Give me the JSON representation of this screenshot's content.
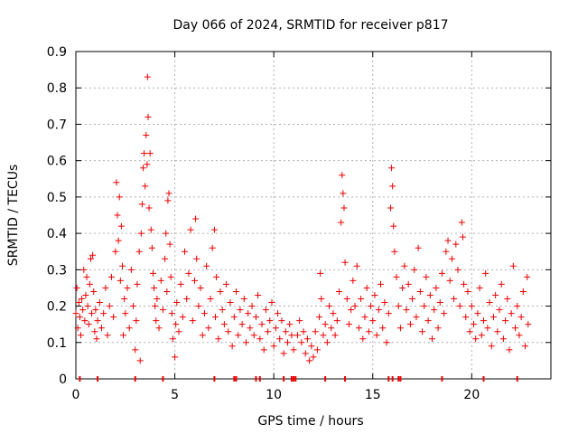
{
  "chart_data": {
    "type": "scatter",
    "title": "Day 066 of 2024, SRMTID for receiver p817",
    "xlabel": "GPS time / hours",
    "ylabel": "SRMTID / TECUs",
    "xlim": [
      0,
      24
    ],
    "ylim": [
      0,
      0.9
    ],
    "x_ticks": [
      0,
      5,
      10,
      15,
      20
    ],
    "x_tick_labels": [
      "0",
      "5",
      "10",
      "15",
      "20"
    ],
    "y_ticks": [
      0,
      0.1,
      0.2,
      0.3,
      0.4,
      0.5,
      0.6,
      0.7,
      0.8,
      0.9
    ],
    "y_tick_labels": [
      "0",
      "0.1",
      "0.2",
      "0.3",
      "0.4",
      "0.5",
      "0.6",
      "0.7",
      "0.8",
      "0.9"
    ],
    "grid": true,
    "marker": "+",
    "color": "#ee0000",
    "series": [
      {
        "name": "SRMTID",
        "points": [
          [
            0.0,
            0.18
          ],
          [
            0.05,
            0.25
          ],
          [
            0.1,
            0.14
          ],
          [
            0.15,
            0.21
          ],
          [
            0.2,
            0.17
          ],
          [
            0.25,
            0.12
          ],
          [
            0.3,
            0.22
          ],
          [
            0.35,
            0.19
          ],
          [
            0.4,
            0.3
          ],
          [
            0.45,
            0.16
          ],
          [
            0.5,
            0.23
          ],
          [
            0.55,
            0.28
          ],
          [
            0.6,
            0.2
          ],
          [
            0.65,
            0.15
          ],
          [
            0.7,
            0.26
          ],
          [
            0.75,
            0.33
          ],
          [
            0.8,
            0.18
          ],
          [
            0.85,
            0.34
          ],
          [
            0.9,
            0.24
          ],
          [
            0.95,
            0.13
          ],
          [
            1.0,
            0.19
          ],
          [
            1.05,
            0.11
          ],
          [
            1.1,
            0.16
          ],
          [
            1.2,
            0.21
          ],
          [
            1.3,
            0.14
          ],
          [
            1.4,
            0.18
          ],
          [
            1.5,
            0.25
          ],
          [
            1.6,
            0.12
          ],
          [
            1.7,
            0.2
          ],
          [
            1.8,
            0.28
          ],
          [
            1.9,
            0.17
          ],
          [
            2.0,
            0.35
          ],
          [
            2.05,
            0.54
          ],
          [
            2.1,
            0.45
          ],
          [
            2.15,
            0.38
          ],
          [
            2.2,
            0.5
          ],
          [
            2.25,
            0.27
          ],
          [
            2.3,
            0.42
          ],
          [
            2.35,
            0.31
          ],
          [
            2.4,
            0.12
          ],
          [
            2.45,
            0.22
          ],
          [
            2.5,
            0.18
          ],
          [
            2.6,
            0.25
          ],
          [
            2.7,
            0.14
          ],
          [
            2.8,
            0.3
          ],
          [
            2.9,
            0.2
          ],
          [
            3.0,
            0.08
          ],
          [
            3.05,
            0.16
          ],
          [
            3.1,
            0.26
          ],
          [
            3.2,
            0.35
          ],
          [
            3.25,
            0.05
          ],
          [
            3.3,
            0.4
          ],
          [
            3.35,
            0.48
          ],
          [
            3.4,
            0.58
          ],
          [
            3.45,
            0.62
          ],
          [
            3.5,
            0.53
          ],
          [
            3.55,
            0.67
          ],
          [
            3.6,
            0.59
          ],
          [
            3.62,
            0.83
          ],
          [
            3.65,
            0.72
          ],
          [
            3.7,
            0.47
          ],
          [
            3.75,
            0.62
          ],
          [
            3.8,
            0.41
          ],
          [
            3.85,
            0.36
          ],
          [
            3.9,
            0.29
          ],
          [
            3.95,
            0.25
          ],
          [
            4.0,
            0.2
          ],
          [
            4.05,
            0.16
          ],
          [
            4.1,
            0.22
          ],
          [
            4.2,
            0.14
          ],
          [
            4.3,
            0.27
          ],
          [
            4.4,
            0.19
          ],
          [
            4.5,
            0.33
          ],
          [
            4.55,
            0.4
          ],
          [
            4.6,
            0.24
          ],
          [
            4.65,
            0.49
          ],
          [
            4.7,
            0.51
          ],
          [
            4.75,
            0.37
          ],
          [
            4.8,
            0.28
          ],
          [
            4.85,
            0.18
          ],
          [
            4.9,
            0.11
          ],
          [
            5.0,
            0.06
          ],
          [
            5.05,
            0.15
          ],
          [
            5.1,
            0.21
          ],
          [
            5.2,
            0.13
          ],
          [
            5.3,
            0.26
          ],
          [
            5.4,
            0.17
          ],
          [
            5.5,
            0.35
          ],
          [
            5.6,
            0.22
          ],
          [
            5.7,
            0.29
          ],
          [
            5.8,
            0.41
          ],
          [
            5.9,
            0.16
          ],
          [
            6.0,
            0.27
          ],
          [
            6.05,
            0.44
          ],
          [
            6.1,
            0.33
          ],
          [
            6.2,
            0.2
          ],
          [
            6.3,
            0.25
          ],
          [
            6.4,
            0.12
          ],
          [
            6.5,
            0.18
          ],
          [
            6.6,
            0.31
          ],
          [
            6.7,
            0.14
          ],
          [
            6.8,
            0.22
          ],
          [
            6.9,
            0.36
          ],
          [
            7.0,
            0.41
          ],
          [
            7.05,
            0.17
          ],
          [
            7.1,
            0.28
          ],
          [
            7.2,
            0.11
          ],
          [
            7.3,
            0.24
          ],
          [
            7.4,
            0.19
          ],
          [
            7.5,
            0.15
          ],
          [
            7.6,
            0.26
          ],
          [
            7.7,
            0.13
          ],
          [
            7.8,
            0.21
          ],
          [
            7.9,
            0.09
          ],
          [
            8.0,
            0.17
          ],
          [
            8.1,
            0.24
          ],
          [
            8.2,
            0.12
          ],
          [
            8.3,
            0.19
          ],
          [
            8.4,
            0.15
          ],
          [
            8.5,
            0.22
          ],
          [
            8.6,
            0.1
          ],
          [
            8.7,
            0.18
          ],
          [
            8.8,
            0.14
          ],
          [
            8.9,
            0.2
          ],
          [
            9.0,
            0.12
          ],
          [
            9.1,
            0.17
          ],
          [
            9.2,
            0.23
          ],
          [
            9.3,
            0.11
          ],
          [
            9.4,
            0.15
          ],
          [
            9.5,
            0.08
          ],
          [
            9.6,
            0.19
          ],
          [
            9.7,
            0.13
          ],
          [
            9.8,
            0.16
          ],
          [
            9.9,
            0.21
          ],
          [
            10.0,
            0.09
          ],
          [
            10.1,
            0.14
          ],
          [
            10.2,
            0.18
          ],
          [
            10.3,
            0.11
          ],
          [
            10.4,
            0.16
          ],
          [
            10.5,
            0.07
          ],
          [
            10.6,
            0.13
          ],
          [
            10.7,
            0.1
          ],
          [
            10.8,
            0.15
          ],
          [
            10.9,
            0.12
          ],
          [
            11.0,
            0.08
          ],
          [
            11.2,
            0.12
          ],
          [
            11.3,
            0.16
          ],
          [
            11.4,
            0.1
          ],
          [
            11.5,
            0.13
          ],
          [
            11.6,
            0.07
          ],
          [
            11.7,
            0.11
          ],
          [
            11.8,
            0.05
          ],
          [
            11.9,
            0.09
          ],
          [
            12.0,
            0.06
          ],
          [
            12.1,
            0.13
          ],
          [
            12.2,
            0.08
          ],
          [
            12.3,
            0.17
          ],
          [
            12.35,
            0.29
          ],
          [
            12.4,
            0.22
          ],
          [
            12.5,
            0.12
          ],
          [
            12.6,
            0.15
          ],
          [
            12.7,
            0.1
          ],
          [
            12.8,
            0.2
          ],
          [
            12.9,
            0.14
          ],
          [
            13.0,
            0.18
          ],
          [
            13.1,
            0.12
          ],
          [
            13.2,
            0.16
          ],
          [
            13.3,
            0.24
          ],
          [
            13.4,
            0.43
          ],
          [
            13.45,
            0.56
          ],
          [
            13.5,
            0.51
          ],
          [
            13.55,
            0.47
          ],
          [
            13.6,
            0.32
          ],
          [
            13.7,
            0.22
          ],
          [
            13.8,
            0.15
          ],
          [
            13.9,
            0.19
          ],
          [
            14.0,
            0.27
          ],
          [
            14.1,
            0.2
          ],
          [
            14.2,
            0.31
          ],
          [
            14.3,
            0.14
          ],
          [
            14.4,
            0.22
          ],
          [
            14.5,
            0.11
          ],
          [
            14.6,
            0.17
          ],
          [
            14.7,
            0.25
          ],
          [
            14.8,
            0.13
          ],
          [
            14.9,
            0.2
          ],
          [
            15.0,
            0.16
          ],
          [
            15.1,
            0.23
          ],
          [
            15.2,
            0.12
          ],
          [
            15.3,
            0.19
          ],
          [
            15.4,
            0.26
          ],
          [
            15.5,
            0.14
          ],
          [
            15.6,
            0.21
          ],
          [
            15.7,
            0.1
          ],
          [
            15.8,
            0.18
          ],
          [
            15.9,
            0.47
          ],
          [
            15.95,
            0.58
          ],
          [
            16.0,
            0.53
          ],
          [
            16.05,
            0.42
          ],
          [
            16.1,
            0.35
          ],
          [
            16.2,
            0.28
          ],
          [
            16.3,
            0.2
          ],
          [
            16.4,
            0.14
          ],
          [
            16.5,
            0.25
          ],
          [
            16.6,
            0.31
          ],
          [
            16.7,
            0.19
          ],
          [
            16.8,
            0.26
          ],
          [
            16.9,
            0.15
          ],
          [
            17.0,
            0.22
          ],
          [
            17.1,
            0.3
          ],
          [
            17.2,
            0.17
          ],
          [
            17.3,
            0.36
          ],
          [
            17.4,
            0.24
          ],
          [
            17.5,
            0.13
          ],
          [
            17.6,
            0.2
          ],
          [
            17.7,
            0.28
          ],
          [
            17.8,
            0.16
          ],
          [
            17.9,
            0.23
          ],
          [
            18.0,
            0.11
          ],
          [
            18.1,
            0.19
          ],
          [
            18.2,
            0.25
          ],
          [
            18.3,
            0.14
          ],
          [
            18.4,
            0.21
          ],
          [
            18.5,
            0.29
          ],
          [
            18.6,
            0.18
          ],
          [
            18.7,
            0.35
          ],
          [
            18.8,
            0.38
          ],
          [
            18.9,
            0.27
          ],
          [
            19.0,
            0.33
          ],
          [
            19.1,
            0.22
          ],
          [
            19.2,
            0.37
          ],
          [
            19.3,
            0.3
          ],
          [
            19.4,
            0.2
          ],
          [
            19.5,
            0.43
          ],
          [
            19.55,
            0.39
          ],
          [
            19.6,
            0.26
          ],
          [
            19.7,
            0.17
          ],
          [
            19.8,
            0.24
          ],
          [
            19.9,
            0.13
          ],
          [
            20.0,
            0.2
          ],
          [
            20.1,
            0.15
          ],
          [
            20.2,
            0.11
          ],
          [
            20.3,
            0.18
          ],
          [
            20.4,
            0.25
          ],
          [
            20.5,
            0.12
          ],
          [
            20.6,
            0.16
          ],
          [
            20.7,
            0.29
          ],
          [
            20.8,
            0.14
          ],
          [
            20.9,
            0.21
          ],
          [
            21.0,
            0.09
          ],
          [
            21.1,
            0.17
          ],
          [
            21.2,
            0.23
          ],
          [
            21.3,
            0.13
          ],
          [
            21.4,
            0.19
          ],
          [
            21.5,
            0.26
          ],
          [
            21.6,
            0.11
          ],
          [
            21.7,
            0.16
          ],
          [
            21.8,
            0.22
          ],
          [
            21.9,
            0.08
          ],
          [
            22.0,
            0.18
          ],
          [
            22.1,
            0.31
          ],
          [
            22.2,
            0.14
          ],
          [
            22.3,
            0.2
          ],
          [
            22.4,
            0.12
          ],
          [
            22.5,
            0.17
          ],
          [
            22.6,
            0.24
          ],
          [
            22.7,
            0.09
          ],
          [
            22.8,
            0.28
          ],
          [
            22.85,
            0.15
          ]
        ]
      }
    ],
    "rug_x": [
      0.2,
      1.1,
      3.0,
      4.4,
      7.0,
      8.0,
      8.1,
      9.1,
      9.3,
      10.5,
      10.9,
      11.0,
      11.1,
      12.6,
      13.6,
      15.8,
      16.0,
      16.3,
      16.4,
      18.5,
      20.6,
      22.3
    ]
  }
}
